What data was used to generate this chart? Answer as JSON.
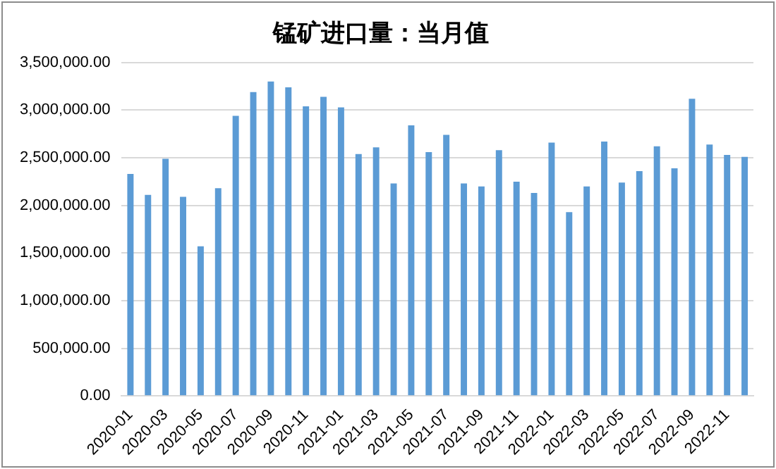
{
  "chart_data": {
    "type": "bar",
    "title": "锰矿进口量：当月值",
    "categories": [
      "2020-01",
      null,
      "2020-03",
      null,
      "2020-05",
      null,
      "2020-07",
      null,
      "2020-09",
      null,
      "2020-11",
      null,
      "2021-01",
      null,
      "2021-03",
      null,
      "2021-05",
      null,
      "2021-07",
      null,
      "2021-09",
      null,
      "2021-11",
      null,
      "2022-01",
      null,
      "2022-03",
      null,
      "2022-05",
      null,
      "2022-07",
      null,
      "2022-09",
      null,
      "2022-11",
      null
    ],
    "values": [
      2330000,
      2110000,
      2490000,
      2090000,
      1570000,
      2180000,
      2940000,
      3190000,
      3300000,
      3240000,
      3040000,
      3140000,
      3030000,
      2540000,
      2610000,
      2230000,
      2840000,
      2560000,
      2740000,
      2230000,
      2200000,
      2580000,
      2250000,
      2130000,
      2660000,
      1930000,
      2200000,
      2670000,
      2240000,
      2360000,
      2620000,
      2390000,
      3120000,
      2640000,
      2530000,
      2510000
    ],
    "color": "#5b9bd5",
    "ylim": [
      0,
      3500000
    ],
    "yticks": [
      {
        "value": 0,
        "label": "0.00"
      },
      {
        "value": 500000,
        "label": "500,000.00"
      },
      {
        "value": 1000000,
        "label": "1,000,000.00"
      },
      {
        "value": 1500000,
        "label": "1,500,000.00"
      },
      {
        "value": 2000000,
        "label": "2,000,000.00"
      },
      {
        "value": 2500000,
        "label": "2,500,000.00"
      },
      {
        "value": 3000000,
        "label": "3,000,000.00"
      },
      {
        "value": 3500000,
        "label": "3,500,000.00"
      }
    ],
    "grid": "y",
    "legend": false
  }
}
